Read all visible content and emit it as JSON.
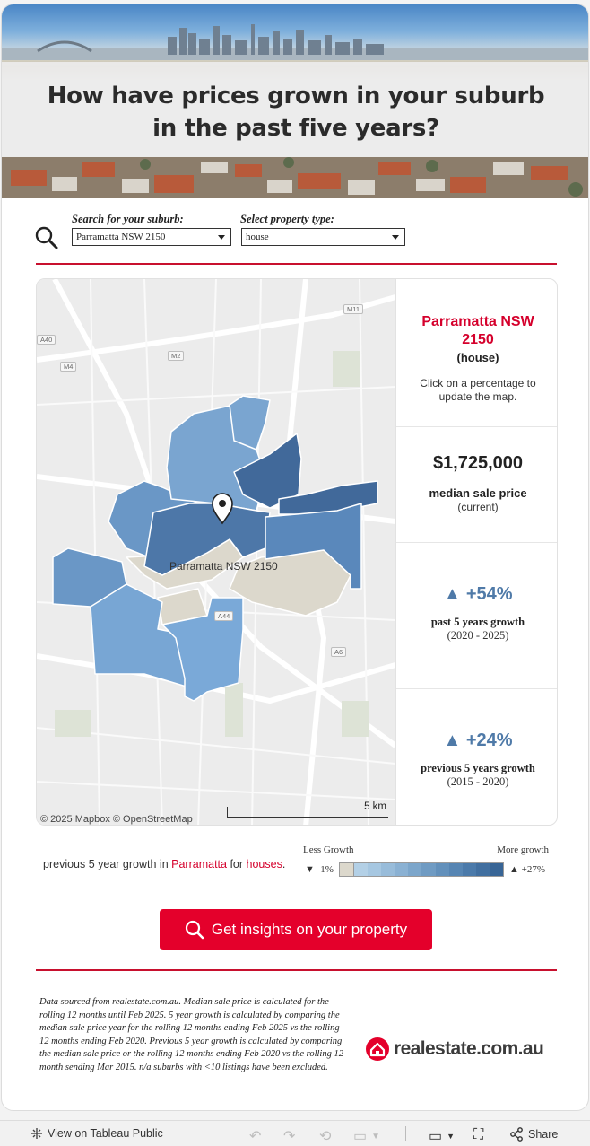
{
  "header": {
    "title_line1": "How have prices grown in your suburb",
    "title_line2": "in the past five years?"
  },
  "filters": {
    "suburb_label": "Search for your suburb:",
    "suburb_value": "Parramatta NSW 2150",
    "type_label": "Select property type:",
    "type_value": "house"
  },
  "map": {
    "pin_label": "Parramatta NSW 2150",
    "credit_mapbox": "© 2025 Mapbox",
    "credit_osm": "© OpenStreetMap",
    "scale_label": "5 km",
    "road_badges": [
      "M11",
      "M2",
      "A6",
      "A44",
      "A40",
      "M4"
    ]
  },
  "summary": {
    "suburb_name_line1": "Parramatta NSW",
    "suburb_name_line2": "2150",
    "property_type": "(house)",
    "hint": "Click on a percentage to update the map.",
    "median_price": "$1,725,000",
    "median_label": "median sale price",
    "median_sub": "(current)",
    "past_growth": "▲ +54%",
    "past_label": "past 5 years growth",
    "past_period": "(2020 - 2025)",
    "prev_growth": "▲ +24%",
    "prev_label": "previous 5 years growth",
    "prev_period": "(2015 - 2020)"
  },
  "legend": {
    "caption_prefix": "previous 5 year growth in ",
    "caption_suburb": "Parramatta",
    "caption_mid": " for ",
    "caption_type": "houses",
    "caption_end": ".",
    "less": "Less Growth",
    "more": "More growth",
    "min": "▼ -1%",
    "max": "▲ +27%",
    "colors": [
      "#dcd8cc",
      "#b3d0e6",
      "#a6c7e1",
      "#98bcda",
      "#8ab1d3",
      "#7ca6cb",
      "#6f9bc3",
      "#6290bb",
      "#5685b3",
      "#4b7aaa",
      "#416fa0",
      "#386596"
    ]
  },
  "cta": {
    "label": "Get insights on your property"
  },
  "footnote": "Data sourced from realestate.com.au. Median sale price is calculated for the rolling 12 months until Feb 2025. 5 year growth is calculated by comparing the median sale price year for the rolling 12 months ending Feb 2025 vs the rolling 12 months ending Feb 2020. Previous 5 year growth is calculated by comparing the median sale price or the rolling 12 months ending Feb 2020 vs the rolling 12 month sending Mar 2015. n/a suburbs with <10 listings have been excluded.",
  "brand": {
    "name": "realestate.com.au",
    "color": "#e4002b"
  },
  "toolbar": {
    "view_label": "View on Tableau Public",
    "share_label": "Share"
  }
}
